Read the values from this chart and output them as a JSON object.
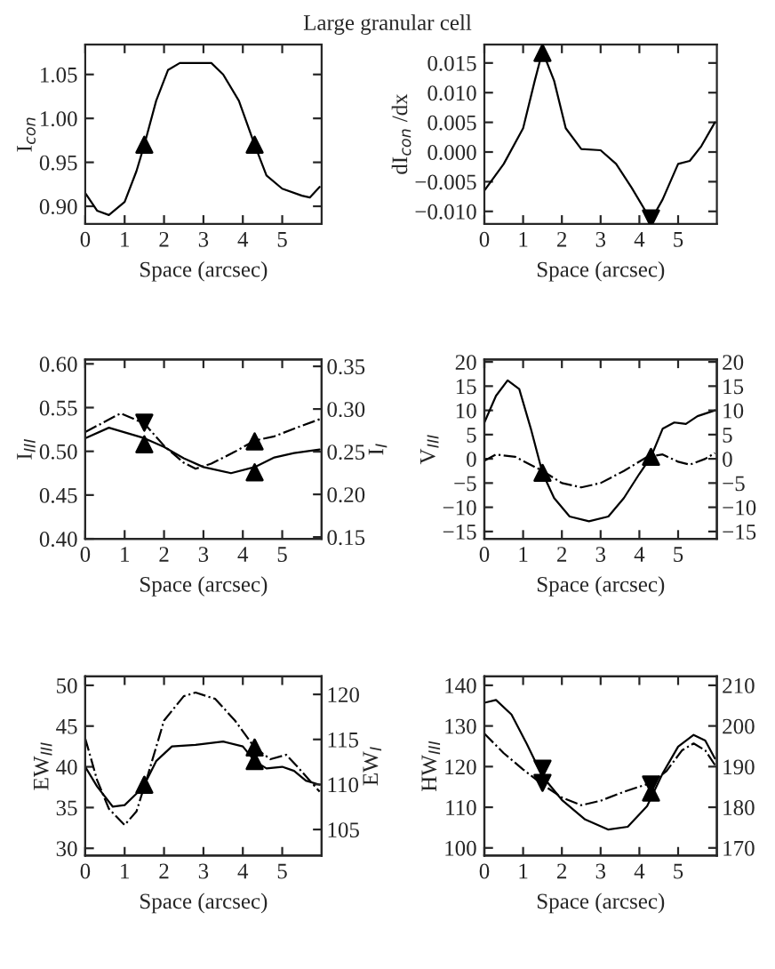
{
  "chart_data": [
    {
      "type": "line",
      "title": "Large granular cell",
      "xlabel": "Space (arcsec)",
      "ylabel": "I$_{con}$",
      "xlim": [
        0,
        6
      ],
      "xticks": [
        0,
        1,
        2,
        3,
        4,
        5
      ],
      "ylim": [
        0.88,
        1.084
      ],
      "yticks": [
        {
          "value": 0.9,
          "label": "0.90"
        },
        {
          "value": 0.95,
          "label": "0.95"
        },
        {
          "value": 1.0,
          "label": "1.00"
        },
        {
          "value": 1.05,
          "label": "1.05"
        }
      ],
      "series": [
        {
          "type": "line",
          "color": "#000000",
          "line_style": "solid",
          "x": [
            0,
            0.3,
            0.6,
            1.0,
            1.3,
            1.5,
            1.8,
            2.1,
            2.4,
            3.2,
            3.5,
            3.9,
            4.3,
            4.6,
            5.0,
            5.5,
            5.7,
            5.95
          ],
          "values": [
            0.915,
            0.895,
            0.89,
            0.905,
            0.94,
            0.97,
            1.02,
            1.055,
            1.063,
            1.063,
            1.05,
            1.02,
            0.97,
            0.935,
            0.92,
            0.912,
            0.91,
            0.922
          ]
        },
        {
          "type": "scatter",
          "color": "#000000",
          "marker": "triangle",
          "x": [
            1.5,
            4.3
          ],
          "values": [
            0.97,
            0.97
          ]
        }
      ]
    },
    {
      "type": "line",
      "xlabel": "Space (arcsec)",
      "ylabel": "dI$_{con}$ /dx",
      "xlim": [
        0,
        6
      ],
      "xticks": [
        0,
        1,
        2,
        3,
        4,
        5
      ],
      "ylim": [
        -0.0121,
        0.0181
      ],
      "yticks": [
        {
          "value": -0.01,
          "label": "−0.010"
        },
        {
          "value": -0.005,
          "label": "−0.005"
        },
        {
          "value": 0.0,
          "label": "0.000"
        },
        {
          "value": 0.005,
          "label": "0.005"
        },
        {
          "value": 0.01,
          "label": "0.010"
        },
        {
          "value": 0.015,
          "label": "0.015"
        }
      ],
      "series": [
        {
          "type": "line",
          "color": "#000000",
          "line_style": "solid",
          "x": [
            0,
            0.5,
            1.0,
            1.3,
            1.5,
            1.8,
            2.1,
            2.5,
            3.0,
            3.4,
            3.8,
            4.3,
            4.6,
            5.0,
            5.3,
            5.6,
            5.95
          ],
          "values": [
            -0.0065,
            -0.002,
            0.004,
            0.012,
            0.017,
            0.012,
            0.004,
            0.0005,
            0.0003,
            -0.002,
            -0.006,
            -0.0115,
            -0.008,
            -0.002,
            -0.0015,
            0.001,
            0.005
          ]
        },
        {
          "type": "scatter",
          "color": "#000000",
          "marker": "triangle",
          "x": [
            1.5
          ],
          "values": [
            0.0167
          ]
        },
        {
          "type": "scatter",
          "color": "#000000",
          "marker": "triangle_down",
          "x": [
            4.3
          ],
          "values": [
            -0.0112
          ]
        }
      ]
    },
    {
      "type": "line",
      "xlabel": "Space (arcsec)",
      "ylabel": "I$_{III}$",
      "y2label": "I$_{I}$",
      "xlim": [
        0,
        6
      ],
      "xticks": [
        0,
        1,
        2,
        3,
        4,
        5
      ],
      "ylim": [
        0.4,
        0.605
      ],
      "yticks": [
        {
          "value": 0.4,
          "label": "0.40"
        },
        {
          "value": 0.45,
          "label": "0.45"
        },
        {
          "value": 0.5,
          "label": "0.50"
        },
        {
          "value": 0.55,
          "label": "0.55"
        },
        {
          "value": 0.6,
          "label": "0.60"
        }
      ],
      "y2lim": [
        0.148,
        0.358
      ],
      "y2ticks": [
        {
          "value": 0.15,
          "label": "0.15"
        },
        {
          "value": 0.2,
          "label": "0.20"
        },
        {
          "value": 0.25,
          "label": "0.25"
        },
        {
          "value": 0.3,
          "label": "0.30"
        },
        {
          "value": 0.35,
          "label": "0.35"
        }
      ],
      "series": [
        {
          "type": "line",
          "color": "#000000",
          "line_style": "solid",
          "x": [
            0,
            0.6,
            1.5,
            2.0,
            2.5,
            3.0,
            3.7,
            4.3,
            4.8,
            5.3,
            5.95
          ],
          "values": [
            0.515,
            0.527,
            0.515,
            0.505,
            0.492,
            0.482,
            0.475,
            0.482,
            0.493,
            0.498,
            0.502
          ]
        },
        {
          "type": "line",
          "axis": "y2",
          "color": "#000000",
          "line_style": "dashdot",
          "x": [
            0,
            0.9,
            1.5,
            2.0,
            2.5,
            2.8,
            3.2,
            3.8,
            4.3,
            4.8,
            5.3,
            5.95
          ],
          "values": [
            0.273,
            0.295,
            0.283,
            0.257,
            0.237,
            0.23,
            0.236,
            0.25,
            0.263,
            0.268,
            0.277,
            0.288
          ]
        },
        {
          "type": "scatter",
          "color": "#000000",
          "marker": "triangle",
          "x": [
            1.5,
            4.3
          ],
          "values": [
            0.508,
            0.476
          ]
        },
        {
          "type": "scatter",
          "axis": "y2",
          "color": "#000000",
          "marker": "triangle",
          "x": [
            4.3
          ],
          "values": [
            0.262
          ]
        },
        {
          "type": "scatter",
          "axis": "y2",
          "color": "#000000",
          "marker": "triangle_down",
          "x": [
            1.5
          ],
          "values": [
            0.284
          ]
        }
      ]
    },
    {
      "type": "line",
      "xlabel": "Space (arcsec)",
      "ylabel": "V$_{III}$",
      "xlim": [
        0,
        6
      ],
      "xticks": [
        0,
        1,
        2,
        3,
        4,
        5
      ],
      "ylim": [
        -16.5,
        20.5
      ],
      "yticks": [
        {
          "value": -15,
          "label": "−15"
        },
        {
          "value": -10,
          "label": "−10"
        },
        {
          "value": -5,
          "label": "−5"
        },
        0,
        5,
        10,
        15,
        20
      ],
      "y2lim": [
        -16.5,
        20.5
      ],
      "y2ticks": [
        {
          "value": -15,
          "label": "−15"
        },
        {
          "value": -10,
          "label": "−10"
        },
        {
          "value": -5,
          "label": "−5"
        },
        0,
        5,
        10,
        15,
        20
      ],
      "series": [
        {
          "type": "line",
          "color": "#000000",
          "line_style": "solid",
          "x": [
            0,
            0.3,
            0.6,
            0.9,
            1.2,
            1.5,
            1.8,
            2.2,
            2.7,
            3.2,
            3.6,
            4.0,
            4.3,
            4.6,
            4.9,
            5.2,
            5.5,
            5.95
          ],
          "values": [
            7.5,
            13,
            16.2,
            14.4,
            6.2,
            -2.9,
            -8.1,
            -11.9,
            -12.9,
            -11.9,
            -8.1,
            -3.1,
            0.4,
            6.2,
            7.5,
            7.2,
            8.8,
            10
          ]
        },
        {
          "type": "line",
          "axis": "y2",
          "color": "#000000",
          "line_style": "dashdot",
          "x": [
            0,
            0.3,
            0.8,
            1.5,
            2.0,
            2.5,
            3.0,
            3.6,
            4.2,
            4.6,
            5.0,
            5.3,
            5.7,
            5.95
          ],
          "values": [
            -0.4,
            0.9,
            0.4,
            -2.5,
            -5,
            -5.9,
            -5,
            -2.5,
            0.4,
            0.9,
            -0.6,
            -1.2,
            0,
            1.2
          ]
        },
        {
          "type": "scatter",
          "color": "#000000",
          "marker": "triangle",
          "x": [
            1.5,
            4.3
          ],
          "values": [
            -2.9,
            0.4
          ]
        }
      ]
    },
    {
      "type": "line",
      "xlabel": "Space (arcsec)",
      "ylabel": "EW$_{III}$",
      "y2label": "EW$_{I}$",
      "xlim": [
        0,
        6
      ],
      "xticks": [
        0,
        1,
        2,
        3,
        4,
        5
      ],
      "ylim": [
        29.1,
        51.1
      ],
      "yticks": [
        30,
        35,
        40,
        45,
        50
      ],
      "y2lim": [
        102.1,
        122
      ],
      "y2ticks": [
        105,
        110,
        115,
        120
      ],
      "series": [
        {
          "type": "line",
          "color": "#000000",
          "line_style": "solid",
          "x": [
            0,
            0.3,
            0.7,
            1.0,
            1.3,
            1.5,
            1.8,
            2.2,
            2.8,
            3.5,
            4.0,
            4.3,
            4.6,
            5.0,
            5.3,
            5.6,
            5.95
          ],
          "values": [
            40,
            37.6,
            35.1,
            35.3,
            36.7,
            37.8,
            40.7,
            42.5,
            42.7,
            43.1,
            42.5,
            40.7,
            39.8,
            40,
            39.5,
            38.3,
            37.8
          ]
        },
        {
          "type": "line",
          "axis": "y2",
          "color": "#000000",
          "line_style": "dashdot",
          "x": [
            0,
            0.3,
            0.6,
            1.0,
            1.3,
            1.6,
            2.0,
            2.5,
            2.8,
            3.3,
            3.8,
            4.3,
            4.7,
            5.1,
            5.4,
            5.95
          ],
          "values": [
            115.1,
            110.5,
            107.3,
            105.5,
            107,
            111.2,
            117.1,
            119.8,
            120.2,
            119.5,
            117.1,
            114.1,
            112.8,
            113.3,
            111.9,
            109.2
          ]
        },
        {
          "type": "scatter",
          "color": "#000000",
          "marker": "triangle",
          "x": [
            1.5,
            4.3
          ],
          "values": [
            37.8,
            40.7
          ]
        },
        {
          "type": "scatter",
          "axis": "y2",
          "color": "#000000",
          "marker": "triangle",
          "x": [
            4.3
          ],
          "values": [
            114.1
          ]
        }
      ]
    },
    {
      "type": "line",
      "xlabel": "Space (arcsec)",
      "ylabel": "HW$_{III}$",
      "xlim": [
        0,
        6
      ],
      "xticks": [
        0,
        1,
        2,
        3,
        4,
        5
      ],
      "ylim": [
        98.1,
        142.2
      ],
      "yticks": [
        100,
        110,
        120,
        130,
        140
      ],
      "y2lim": [
        168.1,
        212.2
      ],
      "y2ticks": [
        170,
        180,
        190,
        200,
        210
      ],
      "series": [
        {
          "type": "line",
          "color": "#000000",
          "line_style": "solid",
          "x": [
            0,
            0.3,
            0.7,
            1.1,
            1.5,
            2.0,
            2.6,
            3.2,
            3.7,
            4.2,
            4.6,
            5.0,
            5.4,
            5.7,
            5.95
          ],
          "values": [
            135.7,
            136.4,
            132.8,
            125.5,
            117.6,
            111.8,
            107,
            104.5,
            105.2,
            110.3,
            118.3,
            124.9,
            127.8,
            126.4,
            122
          ]
        },
        {
          "type": "line",
          "axis": "y2",
          "color": "#000000",
          "line_style": "dashdot",
          "x": [
            0,
            0.5,
            1.0,
            1.5,
            2.0,
            2.5,
            3.0,
            3.6,
            4.3,
            4.7,
            5.1,
            5.4,
            5.7,
            5.95
          ],
          "values": [
            198.1,
            193.3,
            189.3,
            185.6,
            182.4,
            180.5,
            181.6,
            183.8,
            186,
            188.9,
            194,
            195.7,
            194,
            190.4
          ]
        },
        {
          "type": "scatter",
          "color": "#000000",
          "marker": "triangle_down",
          "x": [
            1.5
          ],
          "values": [
            119.5
          ]
        },
        {
          "type": "scatter",
          "color": "#000000",
          "marker": "triangle",
          "x": [
            4.3
          ],
          "values": [
            113.6
          ]
        },
        {
          "type": "scatter",
          "axis": "y2",
          "color": "#000000",
          "marker": "triangle_down",
          "x": [
            1.5,
            4.3
          ],
          "values": [
            186,
            185.6
          ]
        }
      ]
    }
  ]
}
